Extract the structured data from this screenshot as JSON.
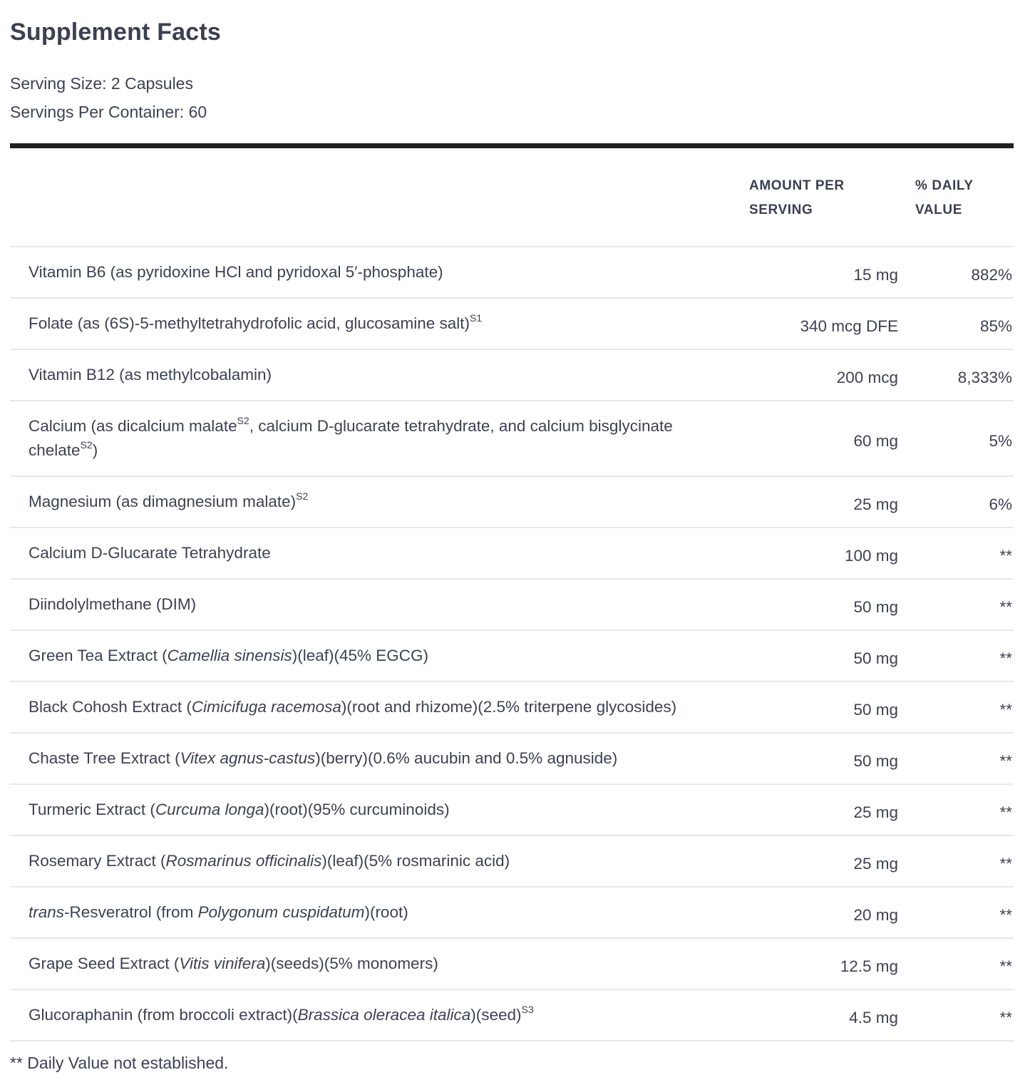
{
  "title": "Supplement Facts",
  "serving": {
    "size_line": "Serving Size: 2 Capsules",
    "container_line": "Servings Per Container: 60"
  },
  "columns": {
    "amount_label": "AMOUNT PER SERVING",
    "daily_value_label": "% DAILY VALUE"
  },
  "rows": [
    {
      "name": [
        {
          "t": "Vitamin B6 (as pyridoxine HCl and pyridoxal 5′-phosphate)"
        }
      ],
      "amount": "15 mg",
      "dv": "882%"
    },
    {
      "name": [
        {
          "t": "Folate (as (6S)-5-methyltetrahydrofolic acid, glucosamine salt)"
        },
        {
          "t": "S1",
          "sup": true
        }
      ],
      "amount": "340 mcg DFE",
      "dv": "85%"
    },
    {
      "name": [
        {
          "t": "Vitamin B12 (as methylcobalamin)"
        }
      ],
      "amount": "200 mcg",
      "dv": "8,333%"
    },
    {
      "name": [
        {
          "t": "Calcium (as dicalcium malate"
        },
        {
          "t": "S2",
          "sup": true
        },
        {
          "t": ", calcium D-glucarate tetrahydrate, and calcium bisglycinate chelate"
        },
        {
          "t": "S2",
          "sup": true
        },
        {
          "t": ")"
        }
      ],
      "amount": "60 mg",
      "dv": "5%"
    },
    {
      "name": [
        {
          "t": "Magnesium (as dimagnesium malate)"
        },
        {
          "t": "S2",
          "sup": true
        }
      ],
      "amount": "25 mg",
      "dv": "6%"
    },
    {
      "name": [
        {
          "t": "Calcium D-Glucarate Tetrahydrate"
        }
      ],
      "amount": "100 mg",
      "dv": "**"
    },
    {
      "name": [
        {
          "t": "Diindolylmethane (DIM)"
        }
      ],
      "amount": "50 mg",
      "dv": "**"
    },
    {
      "name": [
        {
          "t": "Green Tea Extract ("
        },
        {
          "t": "Camellia sinensis",
          "i": true
        },
        {
          "t": ")(leaf)(45% EGCG)"
        }
      ],
      "amount": "50 mg",
      "dv": "**"
    },
    {
      "name": [
        {
          "t": "Black Cohosh Extract ("
        },
        {
          "t": "Cimicifuga racemosa",
          "i": true
        },
        {
          "t": ")(root and rhizome)(2.5% triterpene glycosides)"
        }
      ],
      "amount": "50 mg",
      "dv": "**"
    },
    {
      "name": [
        {
          "t": "Chaste Tree Extract ("
        },
        {
          "t": "Vitex agnus-castus",
          "i": true
        },
        {
          "t": ")(berry)(0.6% aucubin and 0.5% agnuside)"
        }
      ],
      "amount": "50 mg",
      "dv": "**"
    },
    {
      "name": [
        {
          "t": "Turmeric Extract ("
        },
        {
          "t": "Curcuma longa",
          "i": true
        },
        {
          "t": ")(root)(95% curcuminoids)"
        }
      ],
      "amount": "25 mg",
      "dv": "**"
    },
    {
      "name": [
        {
          "t": "Rosemary Extract ("
        },
        {
          "t": "Rosmarinus officinalis",
          "i": true
        },
        {
          "t": ")(leaf)(5% rosmarinic acid)"
        }
      ],
      "amount": "25 mg",
      "dv": "**"
    },
    {
      "name": [
        {
          "t": "trans",
          "i": true
        },
        {
          "t": "-Resveratrol (from "
        },
        {
          "t": "Polygonum cuspidatum",
          "i": true
        },
        {
          "t": ")(root)"
        }
      ],
      "amount": "20 mg",
      "dv": "**"
    },
    {
      "name": [
        {
          "t": "Grape Seed Extract ("
        },
        {
          "t": "Vitis vinifera",
          "i": true
        },
        {
          "t": ")(seeds)(5% monomers)"
        }
      ],
      "amount": "12.5 mg",
      "dv": "**"
    },
    {
      "name": [
        {
          "t": "Glucoraphanin (from broccoli extract)("
        },
        {
          "t": "Brassica oleracea italica",
          "i": true
        },
        {
          "t": ")(seed)"
        },
        {
          "t": "S3",
          "sup": true
        }
      ],
      "amount": "4.5 mg",
      "dv": "**"
    }
  ],
  "footnote": "** Daily Value not established.",
  "colors": {
    "text": "#3c4254",
    "divider": "#e8e8eb",
    "thick_rule": "#1f1f1f",
    "background": "#ffffff"
  }
}
